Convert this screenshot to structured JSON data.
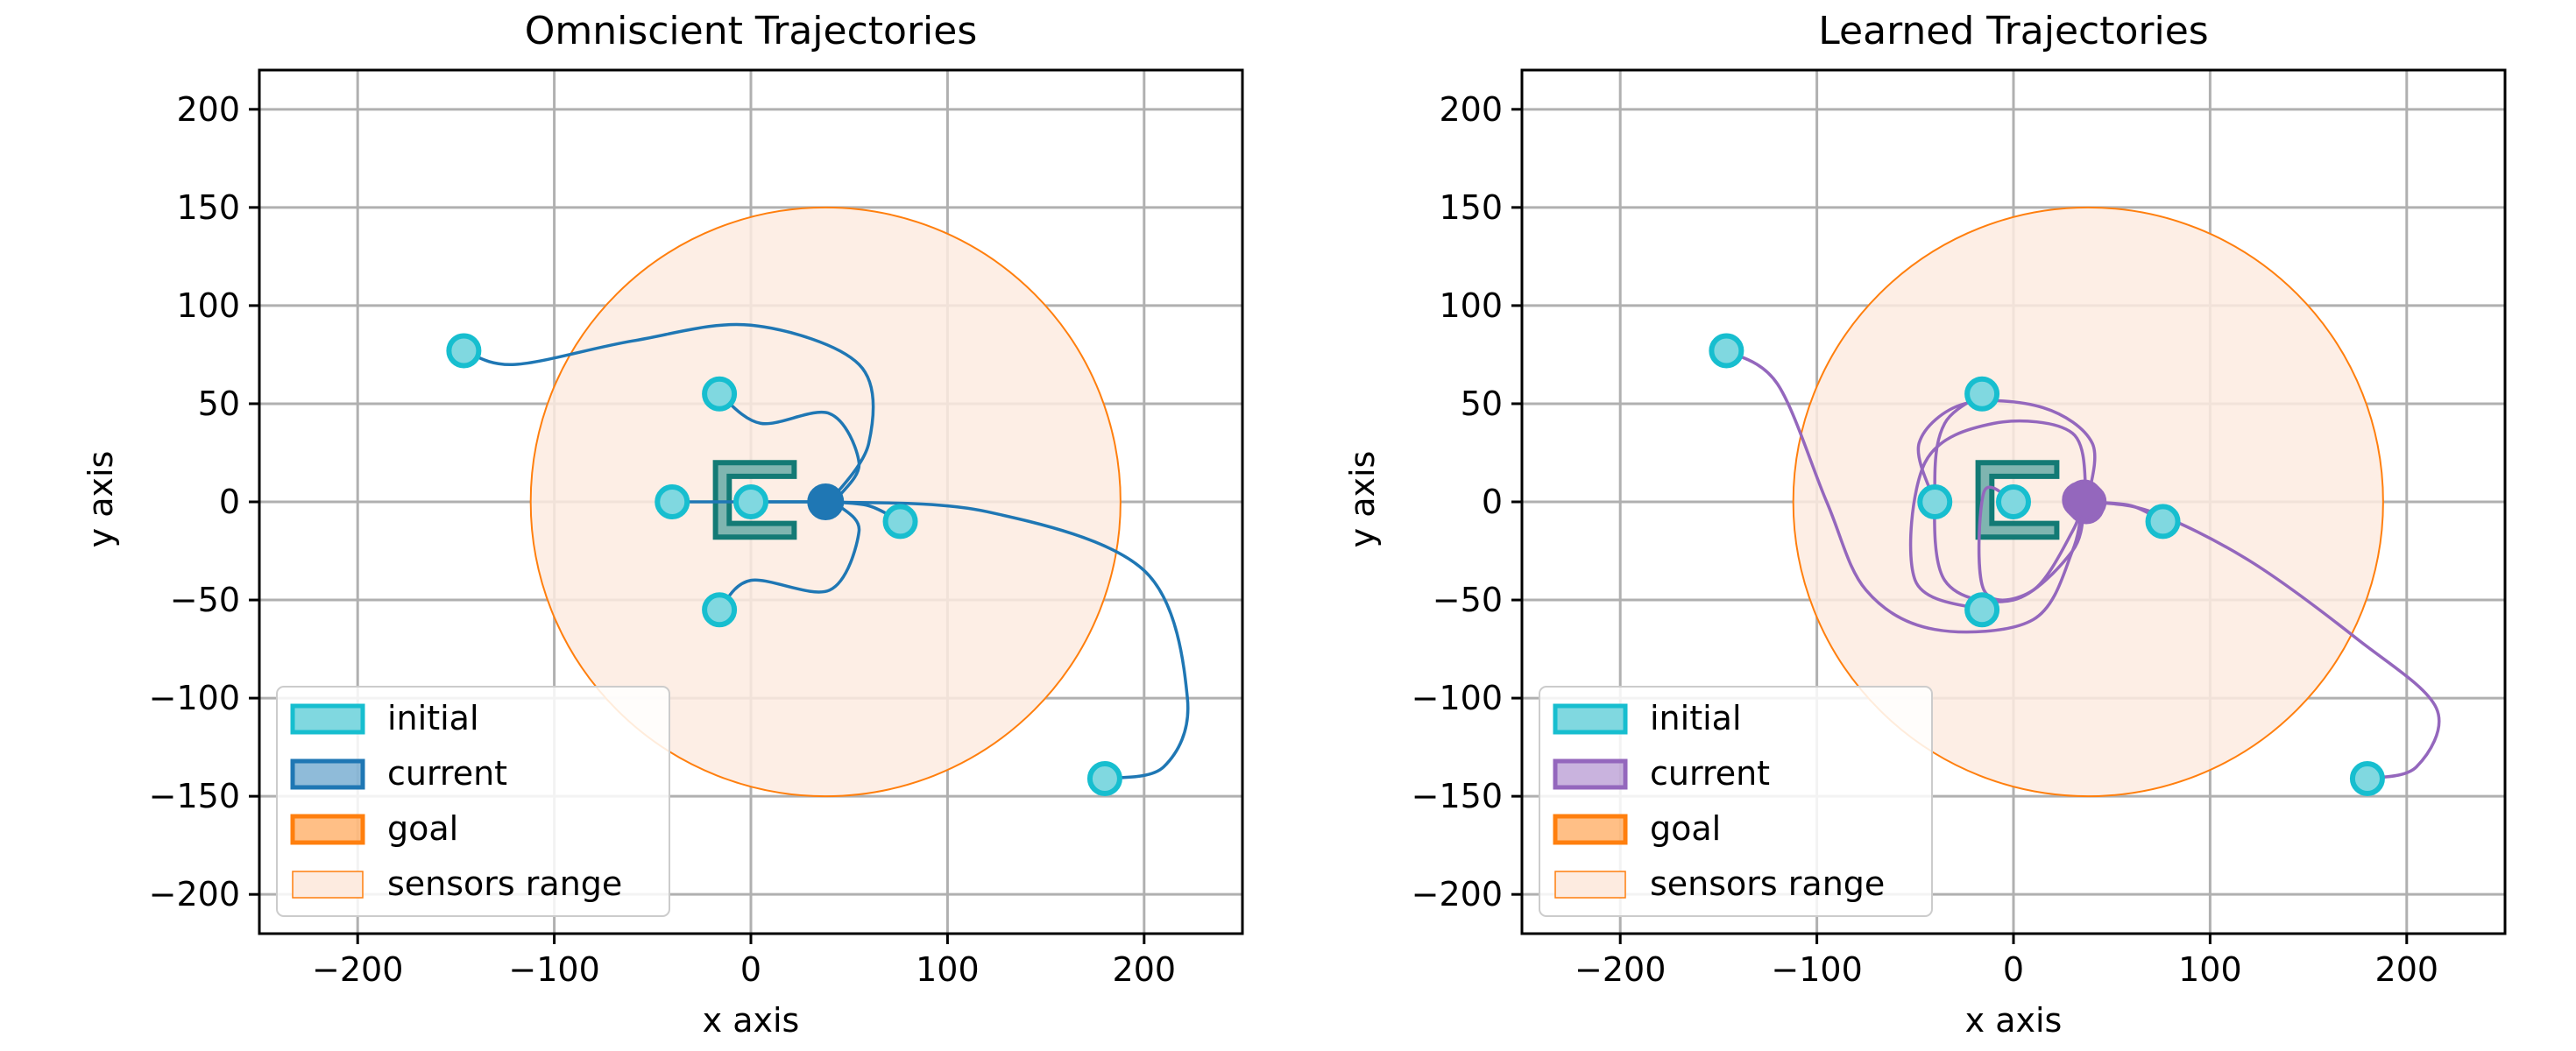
{
  "colors": {
    "initial_fill": "#80d8e0",
    "initial_edge": "#17becf",
    "omniscient_current": "#1f77b4",
    "learned_current": "#9467bd",
    "goal": "#ff7f0e",
    "sensor_fill": "#fdebe0",
    "obstacle_fill": "#7fb5b0",
    "obstacle_edge": "#137a75",
    "grid": "#b0b0b0"
  },
  "chart_data": [
    {
      "type": "scatter",
      "title": "Omniscient Trajectories",
      "xlabel": "x axis",
      "ylabel": "y axis",
      "xlim": [
        -250,
        250
      ],
      "ylim": [
        -220,
        220
      ],
      "xticks": [
        -200,
        -100,
        0,
        100,
        200
      ],
      "yticks": [
        -200,
        -150,
        -100,
        -50,
        0,
        50,
        100,
        150,
        200
      ],
      "xtick_labels": [
        "−200",
        "−100",
        "0",
        "100",
        "200"
      ],
      "ytick_labels": [
        "−200",
        "−150",
        "−100",
        "−50",
        "0",
        "50",
        "100",
        "150",
        "200"
      ],
      "grid": true,
      "legend_position": "lower-left",
      "legend": [
        "initial",
        "current",
        "goal",
        "sensors range"
      ],
      "sensor_range": {
        "center": [
          38,
          0
        ],
        "radius": 150
      },
      "obstacle": {
        "type": "U-shape",
        "x_range": [
          -18,
          22
        ],
        "y_range": [
          -18,
          20
        ]
      },
      "initial_positions": [
        [
          -146,
          77
        ],
        [
          -16,
          55
        ],
        [
          -40,
          0
        ],
        [
          0,
          0
        ],
        [
          76,
          -10
        ],
        [
          -16,
          -55
        ],
        [
          180,
          -141
        ]
      ],
      "current_positions": [
        [
          38,
          0
        ]
      ],
      "trajectories": [
        [
          [
            -146,
            77
          ],
          [
            -120,
            70
          ],
          [
            -60,
            82
          ],
          [
            0,
            90
          ],
          [
            55,
            70
          ],
          [
            60,
            30
          ],
          [
            40,
            0
          ]
        ],
        [
          [
            -16,
            55
          ],
          [
            5,
            40
          ],
          [
            40,
            45
          ],
          [
            55,
            20
          ],
          [
            45,
            3
          ]
        ],
        [
          [
            -40,
            0
          ],
          [
            -15,
            0
          ],
          [
            15,
            0
          ],
          [
            38,
            0
          ]
        ],
        [
          [
            0,
            0
          ],
          [
            38,
            0
          ]
        ],
        [
          [
            76,
            -10
          ],
          [
            60,
            -2
          ],
          [
            40,
            0
          ]
        ],
        [
          [
            -16,
            -55
          ],
          [
            0,
            -40
          ],
          [
            40,
            -45
          ],
          [
            55,
            -15
          ],
          [
            45,
            -2
          ]
        ],
        [
          [
            180,
            -141
          ],
          [
            210,
            -135
          ],
          [
            222,
            -100
          ],
          [
            200,
            -35
          ],
          [
            120,
            -5
          ],
          [
            40,
            0
          ]
        ]
      ]
    },
    {
      "type": "scatter",
      "title": "Learned Trajectories",
      "xlabel": "x axis",
      "ylabel": "y axis",
      "xlim": [
        -250,
        250
      ],
      "ylim": [
        -220,
        220
      ],
      "xticks": [
        -200,
        -100,
        0,
        100,
        200
      ],
      "yticks": [
        -200,
        -150,
        -100,
        -50,
        0,
        50,
        100,
        150,
        200
      ],
      "xtick_labels": [
        "−200",
        "−100",
        "0",
        "100",
        "200"
      ],
      "ytick_labels": [
        "−200",
        "−150",
        "−100",
        "−50",
        "0",
        "50",
        "100",
        "150",
        "200"
      ],
      "grid": true,
      "legend_position": "lower-left",
      "legend": [
        "initial",
        "current",
        "goal",
        "sensors range"
      ],
      "sensor_range": {
        "center": [
          38,
          0
        ],
        "radius": 150
      },
      "obstacle": {
        "type": "U-shape",
        "x_range": [
          -18,
          22
        ],
        "y_range": [
          -18,
          20
        ]
      },
      "initial_positions": [
        [
          -146,
          77
        ],
        [
          -16,
          55
        ],
        [
          -40,
          0
        ],
        [
          0,
          0
        ],
        [
          76,
          -10
        ],
        [
          -16,
          -55
        ],
        [
          180,
          -141
        ]
      ],
      "current_positions": [
        [
          35,
          0
        ],
        [
          36,
          2
        ],
        [
          37,
          -2
        ],
        [
          34,
          1
        ],
        [
          38,
          0
        ],
        [
          36,
          -1
        ],
        [
          37,
          1
        ]
      ],
      "trajectories": [
        [
          [
            -146,
            77
          ],
          [
            -120,
            60
          ],
          [
            -95,
            0
          ],
          [
            -75,
            -45
          ],
          [
            -40,
            -65
          ],
          [
            10,
            -60
          ],
          [
            30,
            -25
          ],
          [
            35,
            0
          ]
        ],
        [
          [
            -16,
            55
          ],
          [
            -35,
            40
          ],
          [
            -40,
            10
          ],
          [
            -35,
            -40
          ],
          [
            0,
            -50
          ],
          [
            30,
            -25
          ],
          [
            36,
            -2
          ]
        ],
        [
          [
            -40,
            0
          ],
          [
            -48,
            30
          ],
          [
            -25,
            50
          ],
          [
            15,
            48
          ],
          [
            40,
            30
          ],
          [
            38,
            2
          ]
        ],
        [
          [
            0,
            0
          ],
          [
            -15,
            5
          ],
          [
            -15,
            -45
          ],
          [
            10,
            -45
          ],
          [
            30,
            -15
          ],
          [
            35,
            0
          ]
        ],
        [
          [
            76,
            -10
          ],
          [
            60,
            -2
          ],
          [
            38,
            0
          ]
        ],
        [
          [
            -16,
            -55
          ],
          [
            -50,
            -40
          ],
          [
            -45,
            20
          ],
          [
            -10,
            40
          ],
          [
            30,
            35
          ],
          [
            37,
            3
          ]
        ],
        [
          [
            180,
            -141
          ],
          [
            205,
            -135
          ],
          [
            215,
            -105
          ],
          [
            175,
            -70
          ],
          [
            120,
            -30
          ],
          [
            70,
            -5
          ],
          [
            37,
            0
          ]
        ]
      ]
    }
  ]
}
